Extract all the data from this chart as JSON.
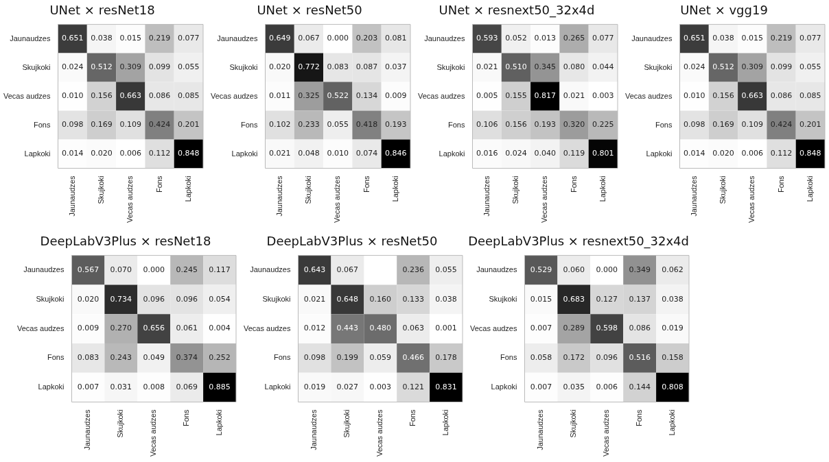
{
  "chart_data": [
    {
      "type": "heatmap",
      "title": "UNet × resNet18",
      "categories": [
        "Jaunaudzes",
        "Skujkoki",
        "Vecas audzes",
        "Fons",
        "Lapkoki"
      ],
      "y_categories": [
        "Jaunaudzes",
        "Skujkoki",
        "Vecas audzes",
        "Fons",
        "Lapkoki"
      ],
      "data_labels": true,
      "cells": [
        [
          0.651,
          0.038,
          0.015,
          0.219,
          0.077
        ],
        [
          0.024,
          0.512,
          0.309,
          0.099,
          0.055
        ],
        [
          0.01,
          0.156,
          0.663,
          0.086,
          0.085
        ],
        [
          0.098,
          0.169,
          0.109,
          0.424,
          0.201
        ],
        [
          0.014,
          0.02,
          0.006,
          0.112,
          0.848
        ]
      ],
      "cell_labels": [
        [
          "0.651",
          "0.038",
          "0.015",
          "0.219",
          "0.077"
        ],
        [
          "0.024",
          "0.512",
          "0.309",
          "0.099",
          "0.055"
        ],
        [
          "0.010",
          "0.156",
          "0.663",
          "0.086",
          "0.085"
        ],
        [
          "0.098",
          "0.169",
          "0.109",
          "0.424",
          "0.201"
        ],
        [
          "0.014",
          "0.020",
          "0.006",
          "0.112",
          "0.848"
        ]
      ]
    },
    {
      "type": "heatmap",
      "title": "UNet × resNet50",
      "categories": [
        "Jaunaudzes",
        "Skujkoki",
        "Vecas audzes",
        "Fons",
        "Lapkoki"
      ],
      "y_categories": [
        "Jaunaudzes",
        "Skujkoki",
        "Vecas audzes",
        "Fons",
        "Lapkoki"
      ],
      "data_labels": true,
      "cells": [
        [
          0.649,
          0.067,
          0.0,
          0.203,
          0.081
        ],
        [
          0.02,
          0.772,
          0.083,
          0.087,
          0.037
        ],
        [
          0.011,
          0.325,
          0.522,
          0.134,
          0.009
        ],
        [
          0.102,
          0.233,
          0.055,
          0.418,
          0.193
        ],
        [
          0.021,
          0.048,
          0.01,
          0.074,
          0.846
        ]
      ],
      "cell_labels": [
        [
          "0.649",
          "0.067",
          "0.000",
          "0.203",
          "0.081"
        ],
        [
          "0.020",
          "0.772",
          "0.083",
          "0.087",
          "0.037"
        ],
        [
          "0.011",
          "0.325",
          "0.522",
          "0.134",
          "0.009"
        ],
        [
          "0.102",
          "0.233",
          "0.055",
          "0.418",
          "0.193"
        ],
        [
          "0.021",
          "0.048",
          "0.010",
          "0.074",
          "0.846"
        ]
      ]
    },
    {
      "type": "heatmap",
      "title": "UNet × resnext50_32x4d",
      "categories": [
        "Jaunaudzes",
        "Skujkoki",
        "Vecas audzes",
        "Fons",
        "Lapkoki"
      ],
      "y_categories": [
        "Jaunaudzes",
        "Skujkoki",
        "Vecas audzes",
        "Fons",
        "Lapkoki"
      ],
      "data_labels": true,
      "cells": [
        [
          0.593,
          0.052,
          0.013,
          0.265,
          0.077
        ],
        [
          0.021,
          0.51,
          0.345,
          0.08,
          0.044
        ],
        [
          0.005,
          0.155,
          0.817,
          0.021,
          0.003
        ],
        [
          0.106,
          0.156,
          0.193,
          0.32,
          0.225
        ],
        [
          0.016,
          0.024,
          0.04,
          0.119,
          0.801
        ]
      ],
      "cell_labels": [
        [
          "0.593",
          "0.052",
          "0.013",
          "0.265",
          "0.077"
        ],
        [
          "0.021",
          "0.510",
          "0.345",
          "0.080",
          "0.044"
        ],
        [
          "0.005",
          "0.155",
          "0.817",
          "0.021",
          "0.003"
        ],
        [
          "0.106",
          "0.156",
          "0.193",
          "0.320",
          "0.225"
        ],
        [
          "0.016",
          "0.024",
          "0.040",
          "0.119",
          "0.801"
        ]
      ]
    },
    {
      "type": "heatmap",
      "title": "UNet × vgg19",
      "categories": [
        "Jaunaudzes",
        "Skujkoki",
        "Vecas audzes",
        "Fons",
        "Lapkoki"
      ],
      "y_categories": [
        "Jaunaudzes",
        "Skujkoki",
        "Vecas audzes",
        "Fons",
        "Lapkoki"
      ],
      "data_labels": true,
      "cells": [
        [
          0.651,
          0.038,
          0.015,
          0.219,
          0.077
        ],
        [
          0.024,
          0.512,
          0.309,
          0.099,
          0.055
        ],
        [
          0.01,
          0.156,
          0.663,
          0.086,
          0.085
        ],
        [
          0.098,
          0.169,
          0.109,
          0.424,
          0.201
        ],
        [
          0.014,
          0.02,
          0.006,
          0.112,
          0.848
        ]
      ],
      "cell_labels": [
        [
          "0.651",
          "0.038",
          "0.015",
          "0.219",
          "0.077"
        ],
        [
          "0.024",
          "0.512",
          "0.309",
          "0.099",
          "0.055"
        ],
        [
          "0.010",
          "0.156",
          "0.663",
          "0.086",
          "0.085"
        ],
        [
          "0.098",
          "0.169",
          "0.109",
          "0.424",
          "0.201"
        ],
        [
          "0.014",
          "0.020",
          "0.006",
          "0.112",
          "0.848"
        ]
      ]
    },
    {
      "type": "heatmap",
      "title": "DeepLabV3Plus × resNet18",
      "categories": [
        "Jaunaudzes",
        "Skujkoki",
        "Vecas audzes",
        "Fons",
        "Lapkoki"
      ],
      "y_categories": [
        "Jaunaudzes",
        "Skujkoki",
        "Vecas audzes",
        "Fons",
        "Lapkoki"
      ],
      "data_labels": true,
      "cells": [
        [
          0.567,
          0.07,
          0.0,
          0.245,
          0.117
        ],
        [
          0.02,
          0.734,
          0.096,
          0.096,
          0.054
        ],
        [
          0.009,
          0.27,
          0.656,
          0.061,
          0.004
        ],
        [
          0.083,
          0.243,
          0.049,
          0.374,
          0.252
        ],
        [
          0.007,
          0.031,
          0.008,
          0.069,
          0.885
        ]
      ],
      "cell_labels": [
        [
          "0.567",
          "0.070",
          "0.000",
          "0.245",
          "0.117"
        ],
        [
          "0.020",
          "0.734",
          "0.096",
          "0.096",
          "0.054"
        ],
        [
          "0.009",
          "0.270",
          "0.656",
          "0.061",
          "0.004"
        ],
        [
          "0.083",
          "0.243",
          "0.049",
          "0.374",
          "0.252"
        ],
        [
          "0.007",
          "0.031",
          "0.008",
          "0.069",
          "0.885"
        ]
      ]
    },
    {
      "type": "heatmap",
      "title": "DeepLabV3Plus × resNet50",
      "categories": [
        "Jaunaudzes",
        "Skujkoki",
        "Vecas audzes",
        "Fons",
        "Lapkoki"
      ],
      "y_categories": [
        "Jaunaudzes",
        "Skujkoki",
        "Vecas audzes",
        "Fons",
        "Lapkoki"
      ],
      "data_labels": true,
      "cells": [
        [
          0.643,
          0.067,
          null,
          0.236,
          0.055
        ],
        [
          0.021,
          0.648,
          0.16,
          0.133,
          0.038
        ],
        [
          0.012,
          0.443,
          0.48,
          0.063,
          0.001
        ],
        [
          0.098,
          0.199,
          0.059,
          0.466,
          0.178
        ],
        [
          0.019,
          0.027,
          0.003,
          0.121,
          0.831
        ]
      ],
      "cell_labels": [
        [
          "0.643",
          "0.067",
          null,
          "0.236",
          "0.055"
        ],
        [
          "0.021",
          "0.648",
          "0.160",
          "0.133",
          "0.038"
        ],
        [
          "0.012",
          "0.443",
          "0.480",
          "0.063",
          "0.001"
        ],
        [
          "0.098",
          "0.199",
          "0.059",
          "0.466",
          "0.178"
        ],
        [
          "0.019",
          "0.027",
          "0.003",
          "0.121",
          "0.831"
        ]
      ]
    },
    {
      "type": "heatmap",
      "title": "DeepLabV3Plus × resnext50_32x4d",
      "categories": [
        "Jaunaudzes",
        "Skujkoki",
        "Vecas audzes",
        "Fons",
        "Lapkoki"
      ],
      "y_categories": [
        "Jaunaudzes",
        "Skujkoki",
        "Vecas audzes",
        "Fons",
        "Lapkoki"
      ],
      "data_labels": true,
      "cells": [
        [
          0.529,
          0.06,
          0.0,
          0.349,
          0.062
        ],
        [
          0.015,
          0.683,
          0.127,
          0.137,
          0.038
        ],
        [
          0.007,
          0.289,
          0.598,
          0.086,
          0.019
        ],
        [
          0.058,
          0.172,
          0.096,
          0.516,
          0.158
        ],
        [
          0.007,
          0.035,
          0.006,
          0.144,
          0.808
        ]
      ],
      "cell_labels": [
        [
          "0.529",
          "0.060",
          "0.000",
          "0.349",
          "0.062"
        ],
        [
          "0.015",
          "0.683",
          "0.127",
          "0.137",
          "0.038"
        ],
        [
          "0.007",
          "0.289",
          "0.598",
          "0.086",
          "0.019"
        ],
        [
          "0.058",
          "0.172",
          "0.096",
          "0.516",
          "0.158"
        ],
        [
          "0.007",
          "0.035",
          "0.006",
          "0.144",
          "0.808"
        ]
      ]
    }
  ]
}
